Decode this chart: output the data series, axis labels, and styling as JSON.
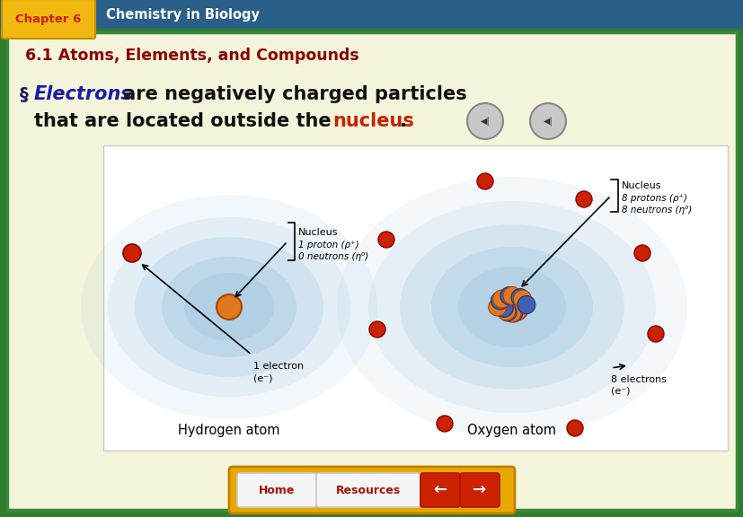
{
  "bg_outer": "#2d7d2d",
  "header_bar_color": "#2a5f8a",
  "chapter_tab_color": "#f0b810",
  "chapter_tab_text": "Chapter 6",
  "chapter_tab_text_color": "#cc2200",
  "header_title": "Chemistry in Biology",
  "header_title_color": "#ffffff",
  "main_bg": "#f5f5dc",
  "main_border_color": "#3a8a3a",
  "section_title": "6.1 Atoms, Elements, and Compounds",
  "section_title_color": "#8b0000",
  "bullet_char": "§",
  "bullet_color": "#1a1a60",
  "electrons_text": "Electrons",
  "electrons_color": "#1a1aaa",
  "line1_rest": " are negatively charged particles",
  "line2_pre": "that are located outside the ",
  "nucleus_text": "nucleus",
  "nucleus_color": "#cc2200",
  "line2_post": ".",
  "text_color": "#111111",
  "atom_orbit_color": "#88b8d8",
  "electron_color": "#cc2200",
  "proton_color": "#e07820",
  "neutron_color": "#4060b0",
  "diag_bg": "#ffffff",
  "diag_border": "#cccccc",
  "nav_bar_color": "#e8a800",
  "nav_bar_border": "#c08000",
  "home_btn_color": "#f5f5f5",
  "home_btn_border": "#cccccc",
  "home_text": "Home",
  "home_text_color": "#aa1100",
  "res_btn_color": "#f5f5f5",
  "res_btn_border": "#cccccc",
  "res_text": "Resources",
  "res_text_color": "#aa1100",
  "arrow_btn_color": "#cc2200",
  "arrow_btn_border": "#aa1500"
}
